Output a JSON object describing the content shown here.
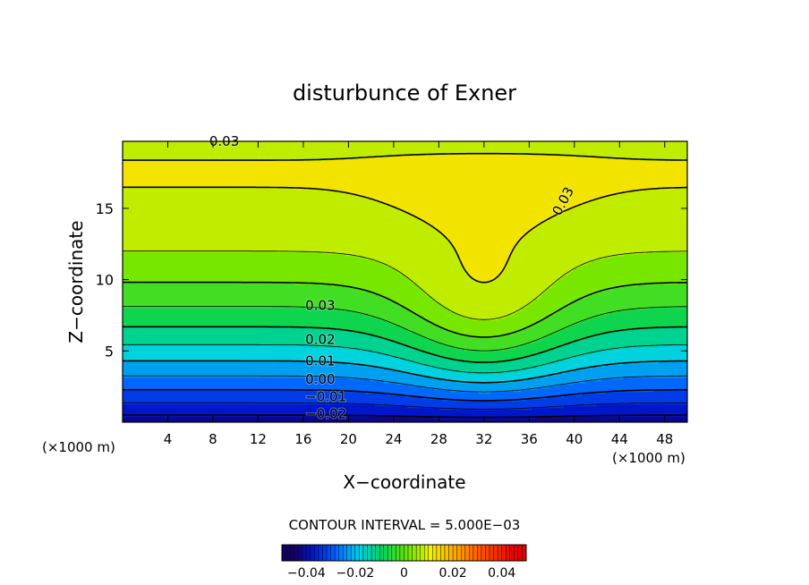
{
  "chart_data": {
    "type": "heatmap",
    "title": "disturbunce of Exner",
    "xlabel": "X−coordinate",
    "ylabel": "Z−coordinate",
    "x_unit_left": "(×1000 m)",
    "x_unit_right": "(×1000 m)",
    "xlim": [
      0,
      50
    ],
    "ylim": [
      0,
      19.7
    ],
    "x_ticks": [
      "4",
      "8",
      "12",
      "16",
      "20",
      "24",
      "28",
      "32",
      "36",
      "40",
      "44",
      "48"
    ],
    "x_tick_values": [
      4,
      8,
      12,
      16,
      20,
      24,
      28,
      32,
      36,
      40,
      44,
      48
    ],
    "y_ticks": [
      "5",
      "10",
      "15"
    ],
    "y_tick_values": [
      5,
      10,
      15
    ],
    "contour_interval_text": "CONTOUR INTERVAL = 5.000E−03",
    "contour_interval": 0.005,
    "contour_labels": [
      {
        "text": "0.03",
        "x": 9.0,
        "z": 19.7
      },
      {
        "text": "0.03",
        "x": 39.0,
        "z": 15.5
      },
      {
        "text": "0.03",
        "x": 17.5,
        "z": 8.2
      },
      {
        "text": "0.02",
        "x": 17.5,
        "z": 5.8
      },
      {
        "text": "0.01",
        "x": 17.5,
        "z": 4.3
      },
      {
        "text": "0.00",
        "x": 17.5,
        "z": 3.0
      },
      {
        "text": "−0.01",
        "x": 18.0,
        "z": 1.8
      },
      {
        "text": "−0.02",
        "x": 18.0,
        "z": 0.6
      }
    ],
    "colorbar": {
      "range": [
        -0.05,
        0.05
      ],
      "tick_labels": [
        "−0.04",
        "−0.02",
        "0",
        "0.02",
        "0.04"
      ],
      "tick_values": [
        -0.04,
        -0.02,
        0,
        0.02,
        0.04
      ]
    },
    "value_min": -0.045,
    "value_max": 0.045
  }
}
